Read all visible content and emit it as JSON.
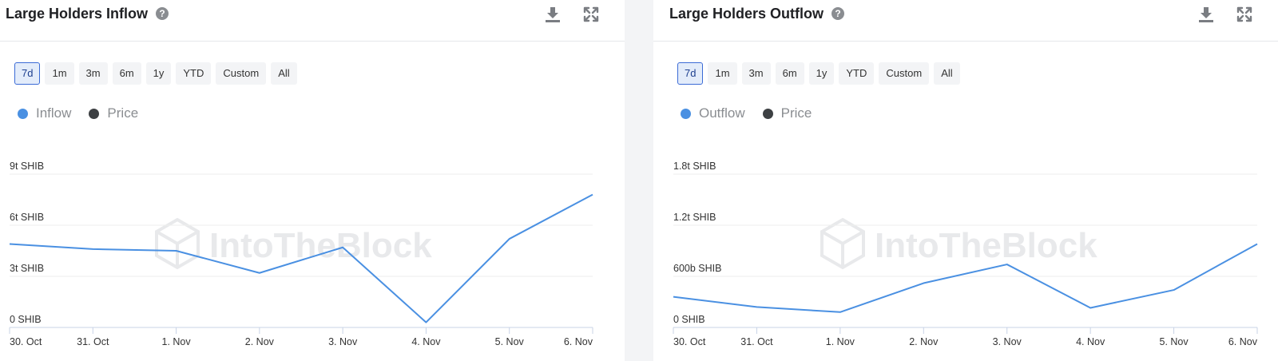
{
  "colors": {
    "series": "#4a90e2",
    "price_dot": "#3d4043",
    "grid": "#eeeeee",
    "axis": "#c8d3e6",
    "active_range": "#3b6bd6"
  },
  "icons": {
    "download": "download-icon",
    "expand": "expand-icon",
    "help": "help-icon"
  },
  "panels": [
    {
      "title": "Large Holders Inflow",
      "help_glyph": "?",
      "ranges": [
        "7d",
        "1m",
        "3m",
        "6m",
        "1y",
        "YTD",
        "Custom",
        "All"
      ],
      "active_range": "7d",
      "legend": [
        "Inflow",
        "Price"
      ],
      "watermark": "IntoTheBlock"
    },
    {
      "title": "Large Holders Outflow",
      "help_glyph": "?",
      "ranges": [
        "7d",
        "1m",
        "3m",
        "6m",
        "1y",
        "YTD",
        "Custom",
        "All"
      ],
      "active_range": "7d",
      "legend": [
        "Outflow",
        "Price"
      ],
      "watermark": "IntoTheBlock"
    }
  ],
  "chart_data": [
    {
      "type": "line",
      "x": [
        "30. Oct",
        "31. Oct",
        "1. Nov",
        "2. Nov",
        "3. Nov",
        "4. Nov",
        "5. Nov",
        "6. Nov"
      ],
      "y_ticks": [
        "0 SHIB",
        "3t SHIB",
        "6t SHIB",
        "9t SHIB"
      ],
      "ylim": [
        0,
        9
      ],
      "y_unit": "t SHIB",
      "series": [
        {
          "name": "Inflow",
          "values": [
            4.9,
            4.6,
            4.5,
            3.2,
            4.7,
            0.3,
            5.2,
            7.8
          ]
        }
      ],
      "legend_placement": "top-left",
      "grid": true
    },
    {
      "type": "line",
      "x": [
        "30. Oct",
        "31. Oct",
        "1. Nov",
        "2. Nov",
        "3. Nov",
        "4. Nov",
        "5. Nov",
        "6. Nov"
      ],
      "y_ticks": [
        "0 SHIB",
        "600b SHIB",
        "1.2t SHIB",
        "1.8t SHIB"
      ],
      "ylim": [
        0,
        1.8
      ],
      "y_unit": "t SHIB",
      "series": [
        {
          "name": "Outflow",
          "values": [
            0.36,
            0.24,
            0.18,
            0.52,
            0.74,
            0.23,
            0.44,
            0.98
          ]
        }
      ],
      "legend_placement": "top-left",
      "grid": true
    }
  ]
}
